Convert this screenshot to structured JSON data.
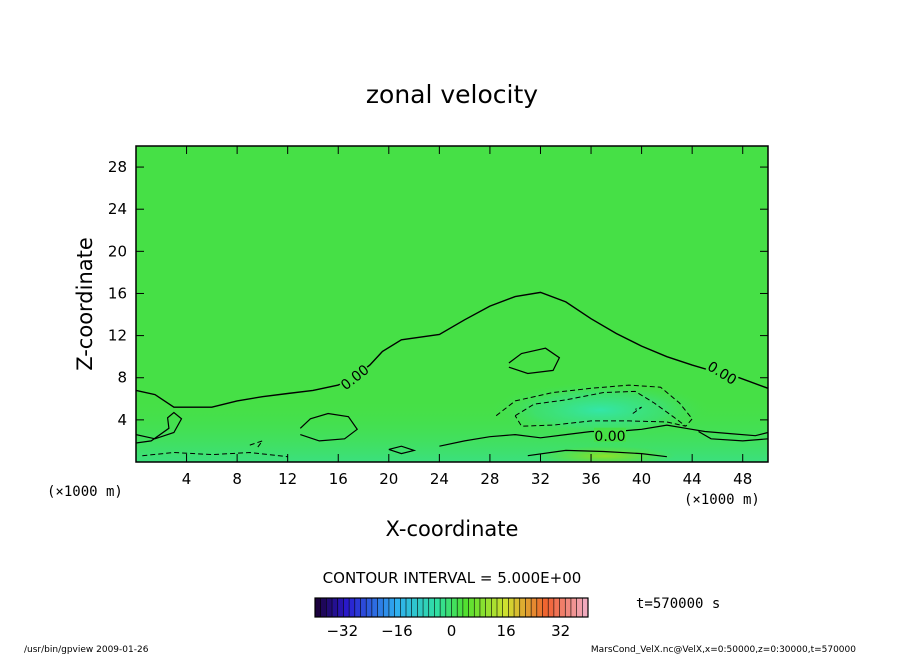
{
  "chart_data": {
    "type": "heatmap",
    "title": "zonal velocity",
    "xlabel": "X-coordinate",
    "ylabel": "Z-coordinate",
    "x_unit": "(×1000 m)",
    "y_unit": "(×1000 m)",
    "xlim": [
      0,
      50
    ],
    "ylim": [
      0,
      30
    ],
    "x_ticks": [
      4,
      8,
      12,
      16,
      20,
      24,
      28,
      32,
      36,
      40,
      44,
      48
    ],
    "y_ticks": [
      4,
      8,
      12,
      16,
      20,
      24,
      28
    ],
    "contour_interval_text": "CONTOUR INTERVAL = 5.000E+00",
    "zero_contour_labels": [
      "0.00",
      "0.00",
      "0.00"
    ],
    "zero_contour": [
      [
        0,
        6.8
      ],
      [
        1.5,
        6.4
      ],
      [
        3,
        5.2
      ],
      [
        6,
        5.2
      ],
      [
        8,
        5.8
      ],
      [
        10,
        6.2
      ],
      [
        12,
        6.5
      ],
      [
        14,
        6.8
      ],
      [
        16,
        7.3
      ],
      [
        17.5,
        8.3
      ],
      [
        18.5,
        9.2
      ],
      [
        19.5,
        10.5
      ],
      [
        21,
        11.6
      ],
      [
        24,
        12.1
      ],
      [
        26,
        13.5
      ],
      [
        28,
        14.8
      ],
      [
        30,
        15.7
      ],
      [
        32,
        16.1
      ],
      [
        34,
        15.2
      ],
      [
        36,
        13.6
      ],
      [
        38,
        12.2
      ],
      [
        40,
        11.0
      ],
      [
        42,
        10.0
      ],
      [
        44,
        9.2
      ],
      [
        46,
        8.5
      ],
      [
        47.5,
        8.1
      ],
      [
        50,
        7.0
      ]
    ],
    "colorbar": {
      "min": -40,
      "max": 40,
      "ticks": [
        -32,
        -16,
        0,
        16,
        32
      ]
    },
    "time_label": "t=570000 s",
    "footer_left": "/usr/bin/gpview  2009-01-26",
    "footer_right": "MarsCond_VelX.nc@VelX,x=0:50000,z=0:30000,t=570000"
  }
}
